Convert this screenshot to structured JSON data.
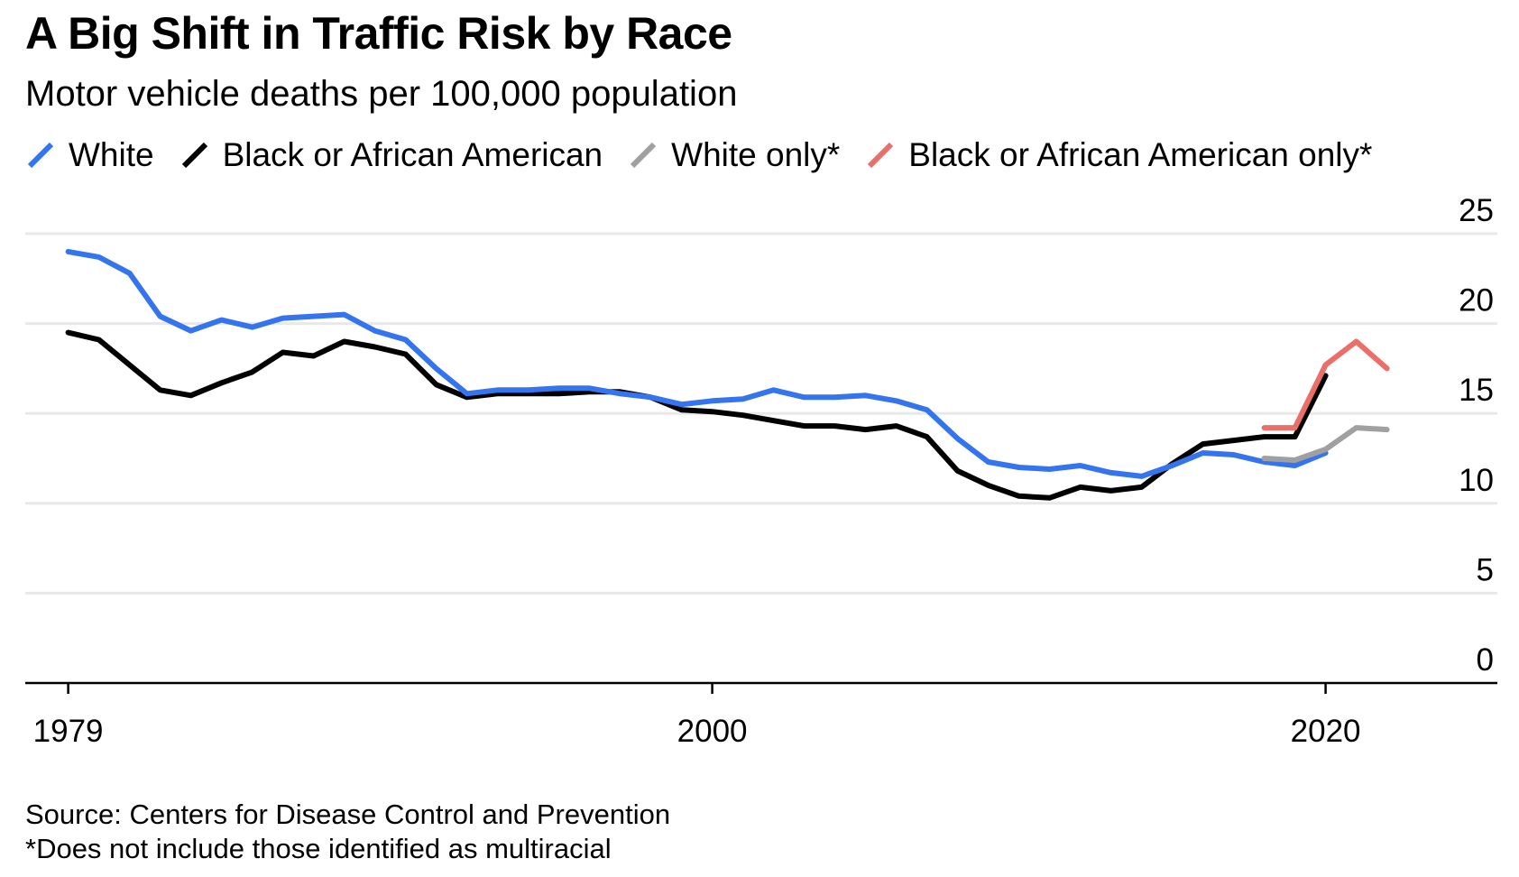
{
  "chart_data": {
    "type": "line",
    "title": "A Big Shift in Traffic Risk by Race",
    "subtitle": "Motor vehicle deaths per 100,000 population",
    "xlim": [
      1977.6,
      2025.6
    ],
    "ylim": [
      0,
      25
    ],
    "x_ticks": [
      1979,
      2000,
      2020
    ],
    "y_ticks": [
      0,
      5,
      10,
      15,
      20,
      25
    ],
    "grid": true,
    "legend_position": "top",
    "series": [
      {
        "name": "White",
        "color": "#3574ef",
        "x": [
          1979,
          1980,
          1981,
          1982,
          1983,
          1984,
          1985,
          1986,
          1987,
          1988,
          1989,
          1990,
          1991,
          1992,
          1993,
          1994,
          1995,
          1996,
          1997,
          1998,
          1999,
          2000,
          2001,
          2002,
          2003,
          2004,
          2005,
          2006,
          2007,
          2008,
          2009,
          2010,
          2011,
          2012,
          2013,
          2014,
          2015,
          2016,
          2017,
          2018,
          2019,
          2020
        ],
        "y": [
          24.0,
          23.7,
          22.8,
          20.4,
          19.6,
          20.2,
          19.8,
          20.3,
          20.4,
          20.5,
          19.6,
          19.1,
          17.5,
          16.1,
          16.3,
          16.3,
          16.4,
          16.4,
          16.1,
          15.9,
          15.5,
          15.7,
          15.8,
          16.3,
          15.9,
          15.9,
          16.0,
          15.7,
          15.2,
          13.6,
          12.3,
          12.0,
          11.9,
          12.1,
          11.7,
          11.5,
          12.1,
          12.8,
          12.7,
          12.3,
          12.1,
          12.8
        ]
      },
      {
        "name": "Black or African American",
        "color": "#000000",
        "x": [
          1979,
          1980,
          1981,
          1982,
          1983,
          1984,
          1985,
          1986,
          1987,
          1988,
          1989,
          1990,
          1991,
          1992,
          1993,
          1994,
          1995,
          1996,
          1997,
          1998,
          1999,
          2000,
          2001,
          2002,
          2003,
          2004,
          2005,
          2006,
          2007,
          2008,
          2009,
          2010,
          2011,
          2012,
          2013,
          2014,
          2015,
          2016,
          2017,
          2018,
          2019,
          2020
        ],
        "y": [
          19.5,
          19.1,
          17.7,
          16.3,
          16.0,
          16.7,
          17.3,
          18.4,
          18.2,
          19.0,
          18.7,
          18.3,
          16.6,
          15.9,
          16.1,
          16.1,
          16.1,
          16.2,
          16.2,
          15.9,
          15.2,
          15.1,
          14.9,
          14.6,
          14.3,
          14.3,
          14.1,
          14.3,
          13.7,
          11.8,
          11.0,
          10.4,
          10.3,
          10.9,
          10.7,
          10.9,
          12.2,
          13.3,
          13.5,
          13.7,
          13.7,
          17.1
        ]
      },
      {
        "name": "White only*",
        "color": "#a0a0a0",
        "x": [
          2018,
          2019,
          2020,
          2021,
          2022
        ],
        "y": [
          12.5,
          12.4,
          13.0,
          14.2,
          14.1
        ]
      },
      {
        "name": "Black or African American only*",
        "color": "#ea6f6a",
        "x": [
          2018,
          2019,
          2020,
          2021,
          2022
        ],
        "y": [
          14.2,
          14.2,
          17.7,
          19.0,
          17.5
        ]
      }
    ],
    "source": "Source: Centers for Disease Control and Prevention",
    "footnote": "*Does not include those identified as multiracial"
  }
}
